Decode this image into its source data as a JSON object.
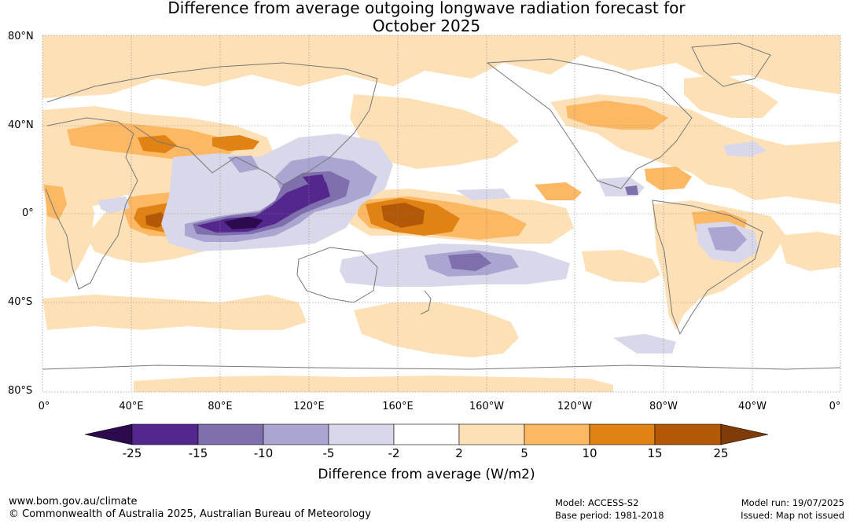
{
  "title": {
    "line1": "Difference from average outgoing longwave radiation forecast for",
    "line2": "October 2025"
  },
  "map": {
    "lat_labels": [
      "80°N",
      "40°N",
      "0°",
      "40°S",
      "80°S"
    ],
    "lon_labels": [
      "0°",
      "40°E",
      "80°E",
      "120°E",
      "160°E",
      "160°W",
      "120°W",
      "80°W",
      "40°W",
      "0°"
    ],
    "regions": [
      "anomaly-positive-north-africa-middle-east",
      "anomaly-positive-equatorial-pacific",
      "anomaly-negative-maritime-continent",
      "anomaly-negative-south-pacific",
      "anomaly-positive-australia"
    ]
  },
  "colorbar": {
    "ticks": [
      "-25",
      "-15",
      "-10",
      "-5",
      "-2",
      "2",
      "5",
      "10",
      "15",
      "25"
    ],
    "colors": [
      "#2d0a4e",
      "#54278f",
      "#7f6fad",
      "#aba5d1",
      "#d9d8ea",
      "#ffffff",
      "#fee0b6",
      "#fdb863",
      "#e08214",
      "#b35806",
      "#7f3b08"
    ],
    "label": "Difference from average (W/m2)"
  },
  "footer": {
    "url": "www.bom.gov.au/climate",
    "copyright": "© Commonwealth of Australia 2025, Australian Bureau of Meteorology",
    "model": "Model: ACCESS-S2",
    "base_period": "Base period: 1981-2018",
    "model_run": "Model run: 19/07/2025",
    "issued": "Issued: Map not issued"
  }
}
